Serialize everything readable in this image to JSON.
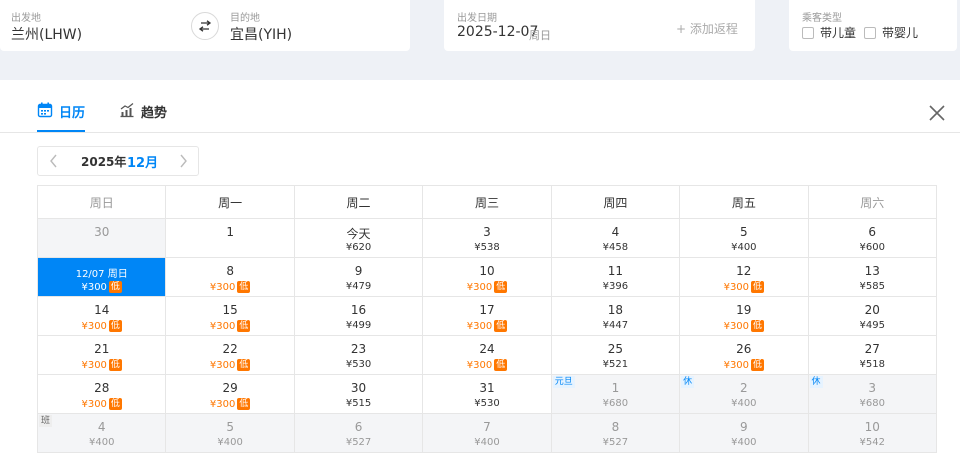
{
  "search": {
    "origin_label": "出发地",
    "origin_value": "兰州(LHW)",
    "dest_label": "目的地",
    "dest_value": "宜昌(YIH)",
    "date_label": "出发日期",
    "date_value": "2025-12-07",
    "date_weekday": "周日",
    "add_return": "+ 添加返程",
    "passenger_label": "乘客类型",
    "child_label": "带儿童",
    "infant_label": "带婴儿"
  },
  "tabs": {
    "calendar": "日历",
    "trend": "趋势"
  },
  "month_nav": {
    "year": "2025年",
    "month": "12月"
  },
  "colors": {
    "accent": "#0086f6",
    "low_price": "#ff7700",
    "muted": "#999999"
  },
  "weekdays": [
    "周日",
    "周一",
    "周二",
    "周三",
    "周四",
    "周五",
    "周六"
  ],
  "weeks": [
    [
      {
        "day": "30",
        "price": "",
        "grey": true
      },
      {
        "day": "1",
        "price": ""
      },
      {
        "day": "今天",
        "price": "¥620"
      },
      {
        "day": "3",
        "price": "¥538"
      },
      {
        "day": "4",
        "price": "¥458"
      },
      {
        "day": "5",
        "price": "¥400"
      },
      {
        "day": "6",
        "price": "¥600"
      }
    ],
    [
      {
        "day": "12/07 周日",
        "price": "¥300",
        "low": true,
        "selected": true
      },
      {
        "day": "8",
        "price": "¥300",
        "low": true
      },
      {
        "day": "9",
        "price": "¥479"
      },
      {
        "day": "10",
        "price": "¥300",
        "low": true
      },
      {
        "day": "11",
        "price": "¥396"
      },
      {
        "day": "12",
        "price": "¥300",
        "low": true
      },
      {
        "day": "13",
        "price": "¥585"
      }
    ],
    [
      {
        "day": "14",
        "price": "¥300",
        "low": true
      },
      {
        "day": "15",
        "price": "¥300",
        "low": true
      },
      {
        "day": "16",
        "price": "¥499"
      },
      {
        "day": "17",
        "price": "¥300",
        "low": true
      },
      {
        "day": "18",
        "price": "¥447"
      },
      {
        "day": "19",
        "price": "¥300",
        "low": true
      },
      {
        "day": "20",
        "price": "¥495"
      }
    ],
    [
      {
        "day": "21",
        "price": "¥300",
        "low": true
      },
      {
        "day": "22",
        "price": "¥300",
        "low": true
      },
      {
        "day": "23",
        "price": "¥530"
      },
      {
        "day": "24",
        "price": "¥300",
        "low": true
      },
      {
        "day": "25",
        "price": "¥521"
      },
      {
        "day": "26",
        "price": "¥300",
        "low": true
      },
      {
        "day": "27",
        "price": "¥518"
      }
    ],
    [
      {
        "day": "28",
        "price": "¥300",
        "low": true
      },
      {
        "day": "29",
        "price": "¥300",
        "low": true
      },
      {
        "day": "30",
        "price": "¥515"
      },
      {
        "day": "31",
        "price": "¥530"
      },
      {
        "day": "1",
        "price": "¥680",
        "grey": true,
        "tag": "元旦"
      },
      {
        "day": "2",
        "price": "¥400",
        "grey": true,
        "tag": "休"
      },
      {
        "day": "3",
        "price": "¥680",
        "grey": true,
        "tag": "休"
      }
    ],
    [
      {
        "day": "4",
        "price": "¥400",
        "grey": true,
        "tag": "班",
        "tag_work": true
      },
      {
        "day": "5",
        "price": "¥400",
        "grey": true
      },
      {
        "day": "6",
        "price": "¥527",
        "grey": true
      },
      {
        "day": "7",
        "price": "¥400",
        "grey": true
      },
      {
        "day": "8",
        "price": "¥527",
        "grey": true
      },
      {
        "day": "9",
        "price": "¥400",
        "grey": true
      },
      {
        "day": "10",
        "price": "¥542",
        "grey": true
      }
    ]
  ],
  "low_tag": "低"
}
